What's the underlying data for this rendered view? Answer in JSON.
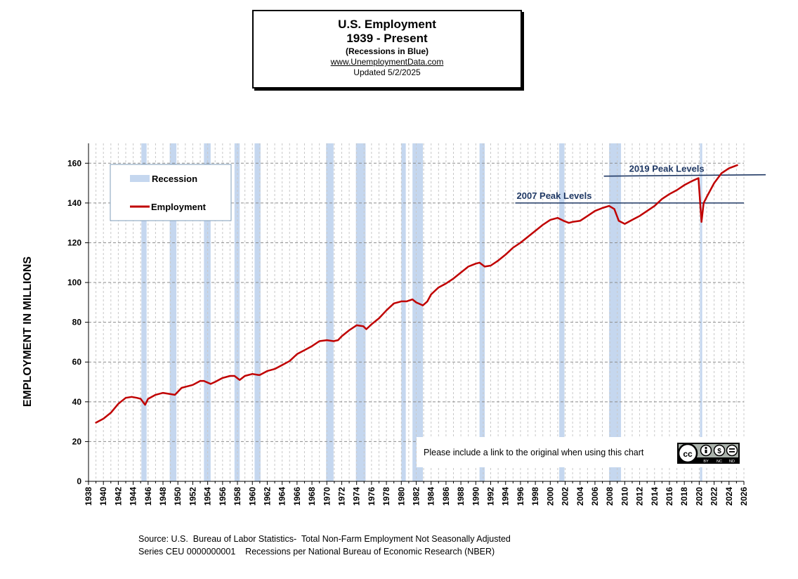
{
  "header": {
    "title_line1": "U.S. Employment",
    "title_line2": "1939 - Present",
    "subtitle": "(Recessions  in Blue)",
    "url": "www.UnemploymentData.com",
    "updated": "Updated  5/2/2025"
  },
  "legend": {
    "recession_label": "Recession",
    "employment_label": "Employment"
  },
  "notice": {
    "text": "Please include a link to the original when using this chart",
    "badge_labels": [
      "BY",
      "NC",
      "ND"
    ]
  },
  "footer": {
    "line1": "Source: U.S.  Bureau of Labor Statistics-  Total Non-Farm Employment Not Seasonally Adjusted",
    "line2": "Series CEU 0000000001    Recessions per National Bureau of Economic Research (NBER)"
  },
  "colors": {
    "employment_line": "#c00000",
    "recession_band": "#c5d7ef",
    "peak_line": "#1f3864",
    "peak_label": "#1f3864"
  },
  "chart_data": {
    "type": "line",
    "title": "U.S. Employment 1939 - Present",
    "xlabel": "",
    "ylabel": "EMPLOYMENT IN MILLIONS",
    "xlim": [
      1938,
      2026
    ],
    "ylim": [
      0,
      170
    ],
    "x_ticks": [
      1938,
      1940,
      1942,
      1944,
      1946,
      1948,
      1950,
      1952,
      1954,
      1956,
      1958,
      1960,
      1962,
      1964,
      1966,
      1968,
      1970,
      1972,
      1974,
      1976,
      1978,
      1980,
      1982,
      1984,
      1986,
      1988,
      1990,
      1992,
      1994,
      1996,
      1998,
      2000,
      2002,
      2004,
      2006,
      2008,
      2010,
      2012,
      2014,
      2016,
      2018,
      2020,
      2022,
      2024,
      2026
    ],
    "y_ticks": [
      0,
      20,
      40,
      60,
      80,
      100,
      120,
      140,
      160
    ],
    "grid": true,
    "legend_position": "top-left",
    "series": [
      {
        "name": "Employment",
        "x": [
          1939.0,
          1940.0,
          1941.0,
          1942.0,
          1943.0,
          1943.8,
          1944.5,
          1945.0,
          1945.6,
          1946.0,
          1947.0,
          1948.0,
          1948.8,
          1949.6,
          1950.5,
          1951.0,
          1952.0,
          1953.0,
          1953.5,
          1954.4,
          1955.0,
          1956.0,
          1957.0,
          1957.6,
          1958.3,
          1959.0,
          1960.0,
          1960.8,
          1961.0,
          1962.0,
          1963.0,
          1964.0,
          1965.0,
          1966.0,
          1967.0,
          1968.0,
          1969.0,
          1970.0,
          1970.9,
          1971.5,
          1972.0,
          1973.0,
          1974.0,
          1974.9,
          1975.3,
          1976.0,
          1977.0,
          1978.0,
          1979.0,
          1980.0,
          1980.7,
          1981.5,
          1982.0,
          1982.9,
          1983.5,
          1984.0,
          1985.0,
          1986.0,
          1987.0,
          1988.0,
          1989.0,
          1990.0,
          1990.5,
          1991.2,
          1992.0,
          1993.0,
          1994.0,
          1995.0,
          1996.0,
          1997.0,
          1998.0,
          1999.0,
          2000.0,
          2001.0,
          2001.8,
          2002.5,
          2003.0,
          2004.0,
          2005.0,
          2006.0,
          2007.0,
          2007.9,
          2008.6,
          2009.2,
          2010.0,
          2011.0,
          2012.0,
          2013.0,
          2014.0,
          2015.0,
          2016.0,
          2017.0,
          2018.0,
          2019.0,
          2019.9,
          2020.3,
          2020.6,
          2021.0,
          2022.0,
          2023.0,
          2024.0,
          2025.1
        ],
        "values": [
          29.5,
          31.5,
          34.5,
          39,
          42,
          42.5,
          42,
          41.5,
          38.5,
          41.5,
          43.5,
          44.5,
          44,
          43.5,
          47,
          47.5,
          48.5,
          50.5,
          50.5,
          49,
          50,
          52,
          53,
          53,
          51,
          53,
          54,
          53.5,
          53.5,
          55.5,
          56.5,
          58.5,
          60.5,
          64,
          66,
          68,
          70.5,
          71,
          70.5,
          71,
          73,
          76,
          78.5,
          78,
          76.5,
          79,
          82,
          86,
          89.5,
          90.5,
          90.5,
          91.5,
          90,
          88.5,
          90.5,
          94,
          97.5,
          99.5,
          102,
          105,
          108,
          109.5,
          110,
          108,
          108.5,
          111,
          114,
          117.5,
          120,
          123,
          126,
          129,
          131.5,
          132.5,
          131,
          130,
          130.5,
          131,
          133.5,
          136,
          137.5,
          138.5,
          137,
          131,
          129.5,
          131.5,
          133.5,
          136,
          138.5,
          142,
          144.5,
          146.5,
          149,
          151,
          152.5,
          130.5,
          140,
          143,
          150,
          155,
          157.5,
          159
        ]
      }
    ],
    "recessions": [
      [
        1945.1,
        1945.8
      ],
      [
        1948.9,
        1949.8
      ],
      [
        1953.5,
        1954.4
      ],
      [
        1957.6,
        1958.3
      ],
      [
        1960.3,
        1961.1
      ],
      [
        1969.9,
        1970.9
      ],
      [
        1973.9,
        1975.2
      ],
      [
        1980.0,
        1980.6
      ],
      [
        1981.5,
        1982.9
      ],
      [
        1990.5,
        1991.2
      ],
      [
        2001.2,
        2001.9
      ],
      [
        2007.9,
        2009.5
      ],
      [
        2020.1,
        2020.4
      ]
    ],
    "annotations": [
      {
        "text": "2007 Peak Levels",
        "y": 140,
        "x_from": 1995.3,
        "x_to": 2026
      },
      {
        "text": "2019 Peak Levels",
        "y": 153.5,
        "x_from": 2007.2,
        "x_to": 2029
      }
    ]
  }
}
